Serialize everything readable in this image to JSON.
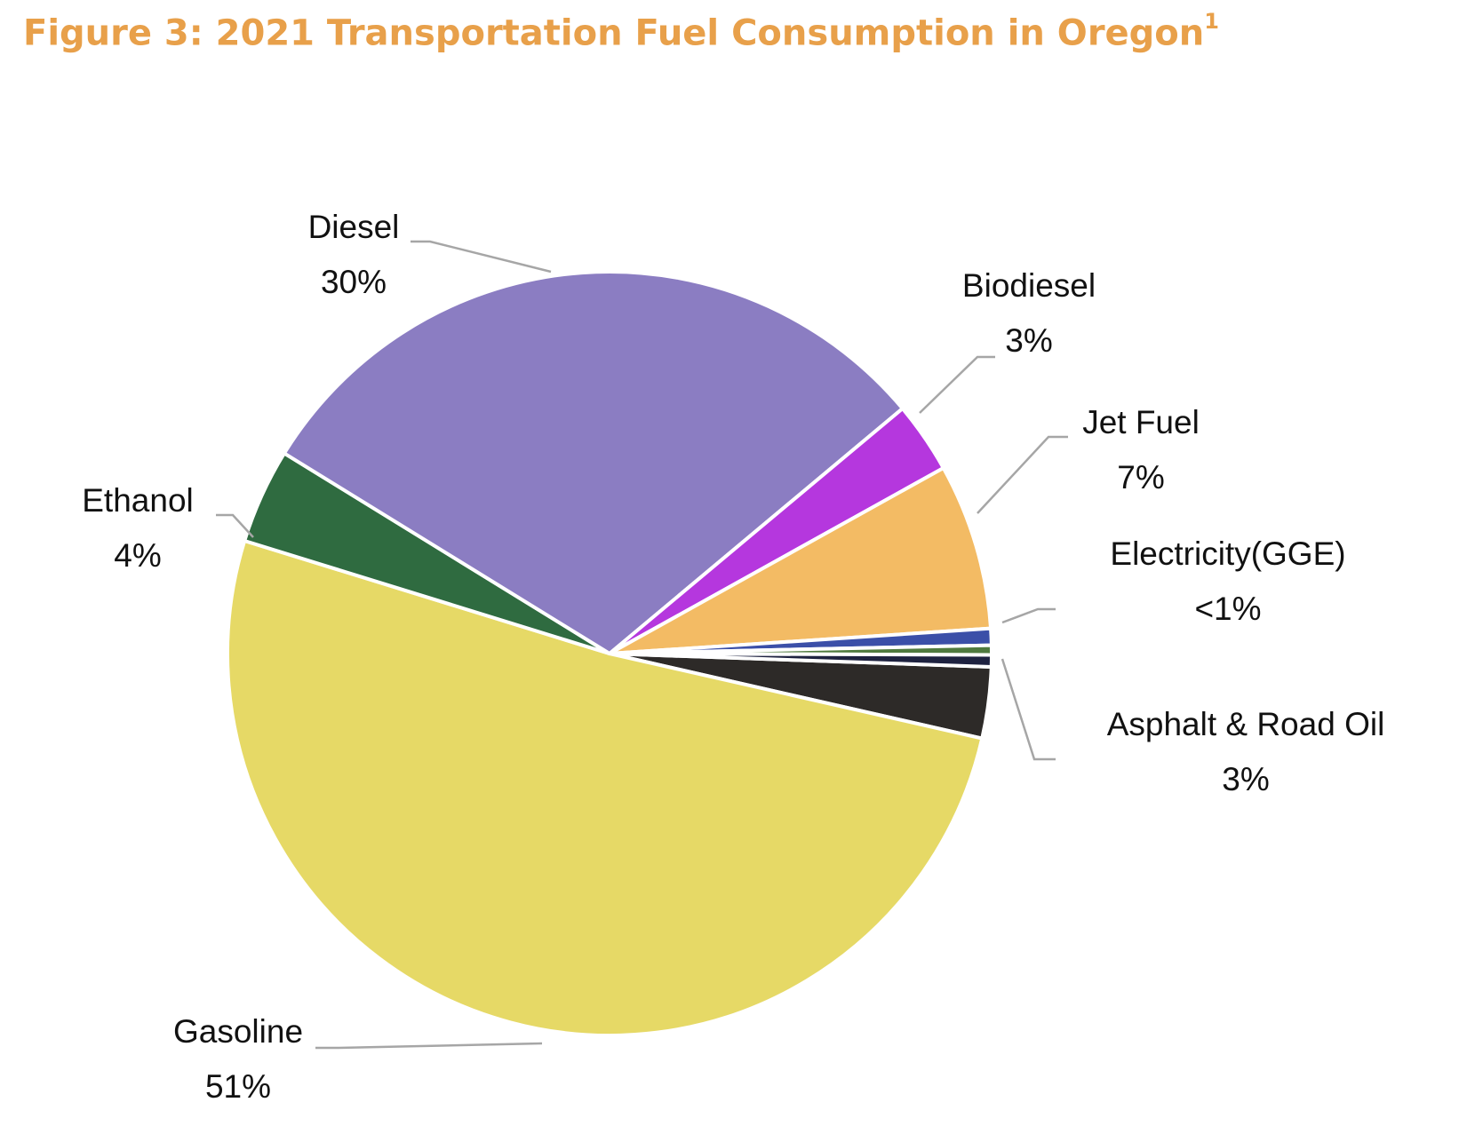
{
  "chart_data": {
    "type": "pie",
    "title": "Figure 3: 2021 Transportation Fuel Consumption in Oregon",
    "title_footnote": "1",
    "title_color": "#E8A04A",
    "start_angle_deg": 2,
    "slices": [
      {
        "name": "Asphalt & Road Oil",
        "value": 3,
        "pct_label": "3%",
        "color": "#2D2A28"
      },
      {
        "name": "Gasoline",
        "value": 51,
        "pct_label": "51%",
        "color": "#E6D966"
      },
      {
        "name": "Ethanol",
        "value": 4,
        "pct_label": "4%",
        "color": "#2F6B40"
      },
      {
        "name": "Diesel",
        "value": 30,
        "pct_label": "30%",
        "color": "#8B7DC2"
      },
      {
        "name": "Biodiesel",
        "value": 3,
        "pct_label": "3%",
        "color": "#B537DE"
      },
      {
        "name": "Jet Fuel",
        "value": 7,
        "pct_label": "7%",
        "color": "#F3BB64"
      },
      {
        "name": "Electricity(GGE)",
        "value": 0.7,
        "pct_label": "<1%",
        "color": "#3B4FA8"
      },
      {
        "name": "",
        "value": 0.4,
        "pct_label": "",
        "color": "#4F7A3E"
      },
      {
        "name": "",
        "value": 0.5,
        "pct_label": "",
        "color": "#1E2240"
      }
    ]
  }
}
